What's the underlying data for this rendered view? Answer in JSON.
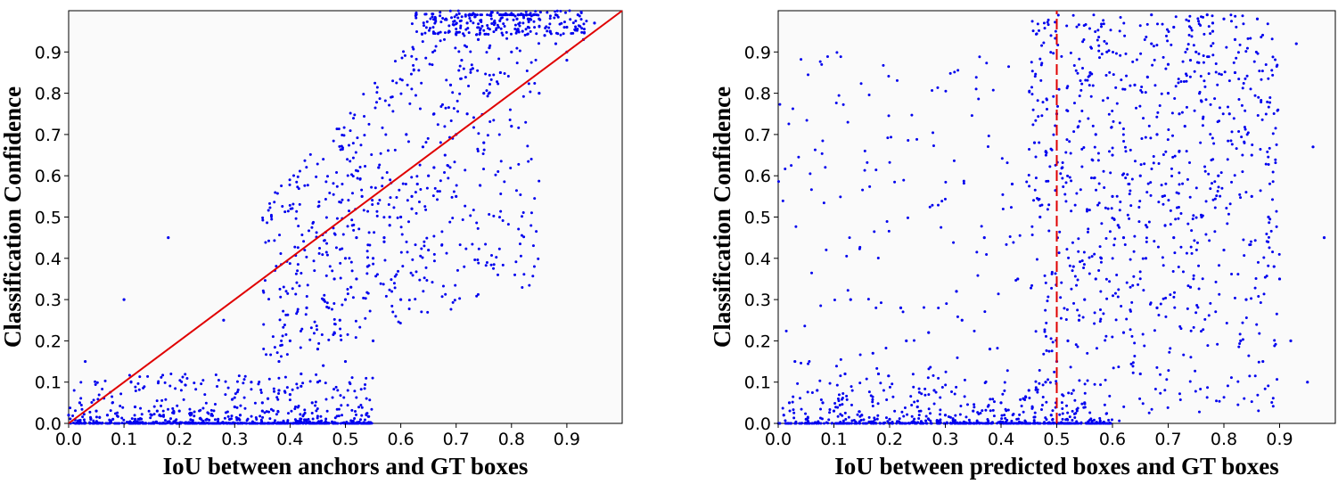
{
  "chart_data": [
    {
      "type": "scatter",
      "xlabel": "IoU between anchors and GT boxes",
      "ylabel": "Classification Confidence",
      "xlim": [
        0.0,
        1.0
      ],
      "ylim": [
        0.0,
        1.0
      ],
      "xticks": [
        "0.0",
        "0.1",
        "0.2",
        "0.3",
        "0.4",
        "0.5",
        "0.6",
        "0.7",
        "0.8",
        "0.9"
      ],
      "yticks": [
        "0.0",
        "0.1",
        "0.2",
        "0.3",
        "0.4",
        "0.5",
        "0.6",
        "0.7",
        "0.8",
        "0.9"
      ],
      "point_color": "#0000ee",
      "grid": false,
      "reference_line": {
        "style": "solid",
        "color": "#e00000",
        "from": [
          0.0,
          0.0
        ],
        "to": [
          1.0,
          1.0
        ]
      },
      "series": [
        {
          "x": [
            0.0,
            0.02,
            0.05,
            0.08,
            0.12,
            0.15,
            0.2,
            0.25,
            0.3,
            0.35,
            0.38,
            0.42,
            0.45,
            0.48,
            0.5,
            0.52,
            0.55,
            0.57,
            0.6,
            0.62,
            0.65,
            0.68,
            0.7,
            0.72,
            0.75,
            0.78,
            0.8,
            0.82,
            0.85,
            0.88,
            0.9,
            0.92,
            0.95,
            0.03,
            0.1,
            0.18,
            0.28,
            0.33,
            0.4,
            0.44,
            0.47,
            0.5,
            0.53,
            0.56,
            0.58,
            0.61,
            0.63,
            0.66,
            0.69,
            0.71,
            0.74,
            0.77,
            0.79,
            0.83,
            0.86,
            0.6,
            0.65,
            0.7,
            0.75,
            0.8,
            0.85,
            0.9,
            0.55,
            0.5,
            0.45,
            0.4,
            0.35,
            0.04,
            0.07,
            0.12,
            0.16,
            0.22,
            0.27,
            0.31,
            0.36,
            0.42,
            0.46,
            0.49,
            0.51,
            0.54,
            0.57,
            0.62,
            0.66,
            0.73,
            0.76,
            0.81,
            0.84,
            0.87,
            0.9,
            0.93,
            0.72,
            0.78,
            0.83,
            0.88,
            0.64,
            0.58,
            0.52,
            0.48,
            0.43,
            0.38
          ],
          "y": [
            0.02,
            0.05,
            0.03,
            0.01,
            0.04,
            0.02,
            0.03,
            0.01,
            0.04,
            0.05,
            0.08,
            0.12,
            0.18,
            0.22,
            0.3,
            0.35,
            0.4,
            0.45,
            0.5,
            0.55,
            0.6,
            0.65,
            0.7,
            0.75,
            0.8,
            0.85,
            0.9,
            0.95,
            0.98,
            0.92,
            0.96,
            0.99,
            0.97,
            0.15,
            0.3,
            0.45,
            0.25,
            0.1,
            0.2,
            0.05,
            0.28,
            0.4,
            0.55,
            0.62,
            0.48,
            0.7,
            0.58,
            0.75,
            0.82,
            0.88,
            0.93,
            0.97,
            0.99,
            0.96,
            0.94,
            0.3,
            0.42,
            0.55,
            0.68,
            0.72,
            0.8,
            0.88,
            0.2,
            0.15,
            0.1,
            0.07,
            0.03,
            0.01,
            0.02,
            0.01,
            0.03,
            0.02,
            0.01,
            0.02,
            0.06,
            0.09,
            0.14,
            0.25,
            0.33,
            0.38,
            0.44,
            0.52,
            0.62,
            0.86,
            0.91,
            0.98,
            0.99,
            0.95,
            0.9,
            0.93,
            0.97,
            0.99,
            0.98,
            0.99,
            0.67,
            0.5,
            0.45,
            0.35,
            0.28,
            0.15
          ]
        }
      ]
    },
    {
      "type": "scatter",
      "xlabel": "IoU between predicted boxes and GT boxes",
      "ylabel": "Classification Confidence",
      "xlim": [
        0.0,
        1.0
      ],
      "ylim": [
        0.0,
        1.0
      ],
      "xticks": [
        "0.0",
        "0.1",
        "0.2",
        "0.3",
        "0.4",
        "0.5",
        "0.6",
        "0.7",
        "0.8",
        "0.9"
      ],
      "yticks": [
        "0.0",
        "0.1",
        "0.2",
        "0.3",
        "0.4",
        "0.5",
        "0.6",
        "0.7",
        "0.8",
        "0.9"
      ],
      "point_color": "#0000ee",
      "grid": false,
      "reference_line": {
        "style": "dashed",
        "color": "#e00000",
        "x": 0.5
      },
      "series": [
        {
          "x": [
            0.01,
            0.05,
            0.1,
            0.15,
            0.2,
            0.25,
            0.3,
            0.35,
            0.4,
            0.45,
            0.48,
            0.5,
            0.52,
            0.55,
            0.58,
            0.6,
            0.62,
            0.65,
            0.68,
            0.7,
            0.72,
            0.75,
            0.78,
            0.8,
            0.82,
            0.85,
            0.88,
            0.9,
            0.92,
            0.95,
            0.98,
            0.03,
            0.08,
            0.13,
            0.18,
            0.23,
            0.28,
            0.33,
            0.38,
            0.43,
            0.47,
            0.51,
            0.54,
            0.57,
            0.61,
            0.64,
            0.67,
            0.69,
            0.71,
            0.74,
            0.77,
            0.79,
            0.81,
            0.84,
            0.87,
            0.56,
            0.6,
            0.66,
            0.73,
            0.76,
            0.8,
            0.83,
            0.86,
            0.53,
            0.63,
            0.7,
            0.74,
            0.78,
            0.68,
            0.72,
            0.65,
            0.59,
            0.55,
            0.5,
            0.46,
            0.42,
            0.37,
            0.32,
            0.27,
            0.22,
            0.17,
            0.12,
            0.07,
            0.02,
            0.96,
            0.93,
            0.89,
            0.85,
            0.82,
            0.76,
            0.71,
            0.67,
            0.62,
            0.57,
            0.53,
            0.49,
            0.44
          ],
          "y": [
            0.02,
            0.01,
            0.03,
            0.02,
            0.01,
            0.04,
            0.02,
            0.03,
            0.05,
            0.08,
            0.1,
            0.15,
            0.2,
            0.3,
            0.4,
            0.55,
            0.45,
            0.6,
            0.7,
            0.8,
            0.75,
            0.9,
            0.95,
            0.98,
            0.85,
            0.65,
            0.5,
            0.35,
            0.2,
            0.1,
            0.45,
            0.15,
            0.05,
            0.3,
            0.12,
            0.2,
            0.08,
            0.25,
            0.18,
            0.35,
            0.5,
            0.62,
            0.25,
            0.7,
            0.48,
            0.82,
            0.92,
            0.55,
            0.96,
            0.88,
            0.99,
            0.6,
            0.75,
            0.3,
            0.15,
            0.85,
            0.65,
            0.4,
            0.72,
            0.5,
            0.42,
            0.2,
            0.98,
            0.38,
            0.58,
            0.87,
            0.33,
            0.97,
            0.28,
            0.66,
            0.12,
            0.9,
            0.05,
            0.75,
            0.68,
            0.58,
            0.45,
            0.32,
            0.22,
            0.28,
            0.17,
            0.12,
            0.08,
            0.05,
            0.67,
            0.92,
            0.38,
            0.55,
            0.93,
            0.78,
            0.45,
            0.99,
            0.22,
            0.35,
            0.08,
            0.02,
            0.06
          ]
        }
      ]
    }
  ]
}
